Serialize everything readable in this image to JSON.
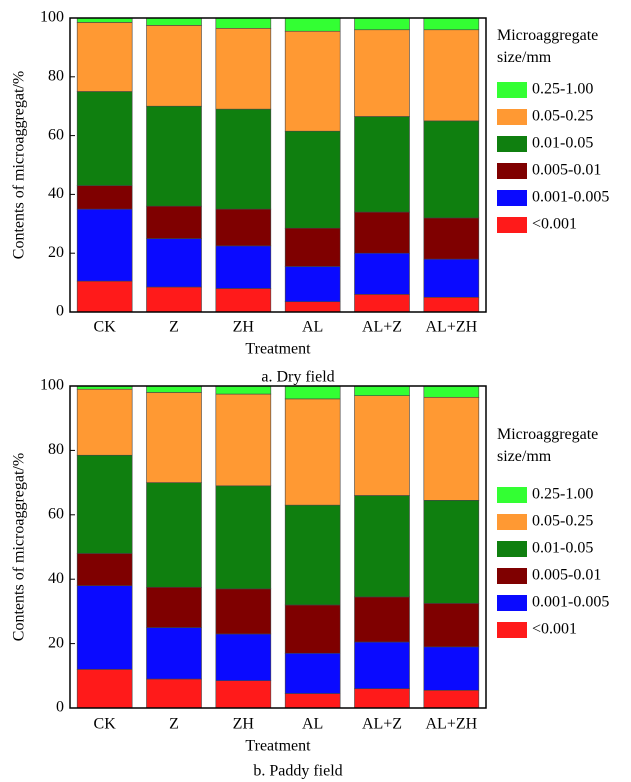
{
  "chart_data": [
    {
      "type": "stacked-bar",
      "caption": "a. Dry field",
      "xlabel": "Treatment",
      "ylabel": "Contents of microaggregat/%",
      "legend_title": "Microaggregate size/mm",
      "categories": [
        "CK",
        "Z",
        "ZH",
        "AL",
        "AL+Z",
        "AL+ZH"
      ],
      "ylim": [
        0,
        100
      ],
      "yticks": [
        0,
        20,
        40,
        60,
        80,
        100
      ],
      "series": [
        {
          "name": "<0.001",
          "color": "#ff1a1a",
          "values": [
            10.5,
            8.5,
            8,
            3.5,
            6,
            5
          ]
        },
        {
          "name": "0.001-0.005",
          "color": "#0a0aff",
          "values": [
            24.5,
            16.5,
            14.5,
            12,
            14,
            13
          ]
        },
        {
          "name": "0.005-0.01",
          "color": "#7f0000",
          "values": [
            8,
            11,
            12.5,
            13,
            14,
            14
          ]
        },
        {
          "name": "0.01-0.05",
          "color": "#0f7f0f",
          "values": [
            32,
            34,
            34,
            33,
            32.5,
            33
          ]
        },
        {
          "name": "0.05-0.25",
          "color": "#ff9933",
          "values": [
            23.5,
            27.5,
            27.5,
            34,
            29.5,
            31
          ]
        },
        {
          "name": "0.25-1.00",
          "color": "#33ff33",
          "values": [
            1.5,
            2.5,
            3.5,
            4.5,
            4,
            4
          ]
        }
      ]
    },
    {
      "type": "stacked-bar",
      "caption": "b. Paddy field",
      "xlabel": "Treatment",
      "ylabel": "Contents of microaggregat/%",
      "legend_title": "Microaggregate size/mm",
      "categories": [
        "CK",
        "Z",
        "ZH",
        "AL",
        "AL+Z",
        "AL+ZH"
      ],
      "ylim": [
        0,
        100
      ],
      "yticks": [
        0,
        20,
        40,
        60,
        80,
        100
      ],
      "series": [
        {
          "name": "<0.001",
          "color": "#ff1a1a",
          "values": [
            12,
            9,
            8.5,
            4.5,
            6,
            5.5
          ]
        },
        {
          "name": "0.001-0.005",
          "color": "#0a0aff",
          "values": [
            26,
            16,
            14.5,
            12.5,
            14.5,
            13.5
          ]
        },
        {
          "name": "0.005-0.01",
          "color": "#7f0000",
          "values": [
            10,
            12.5,
            14,
            15,
            14,
            13.5
          ]
        },
        {
          "name": "0.01-0.05",
          "color": "#0f7f0f",
          "values": [
            30.5,
            32.5,
            32,
            31,
            31.5,
            32
          ]
        },
        {
          "name": "0.05-0.25",
          "color": "#ff9933",
          "values": [
            20.5,
            28,
            28.5,
            33,
            31,
            32
          ]
        },
        {
          "name": "0.25-1.00",
          "color": "#33ff33",
          "values": [
            1,
            2,
            2.5,
            4,
            3,
            3.5
          ]
        }
      ]
    }
  ]
}
